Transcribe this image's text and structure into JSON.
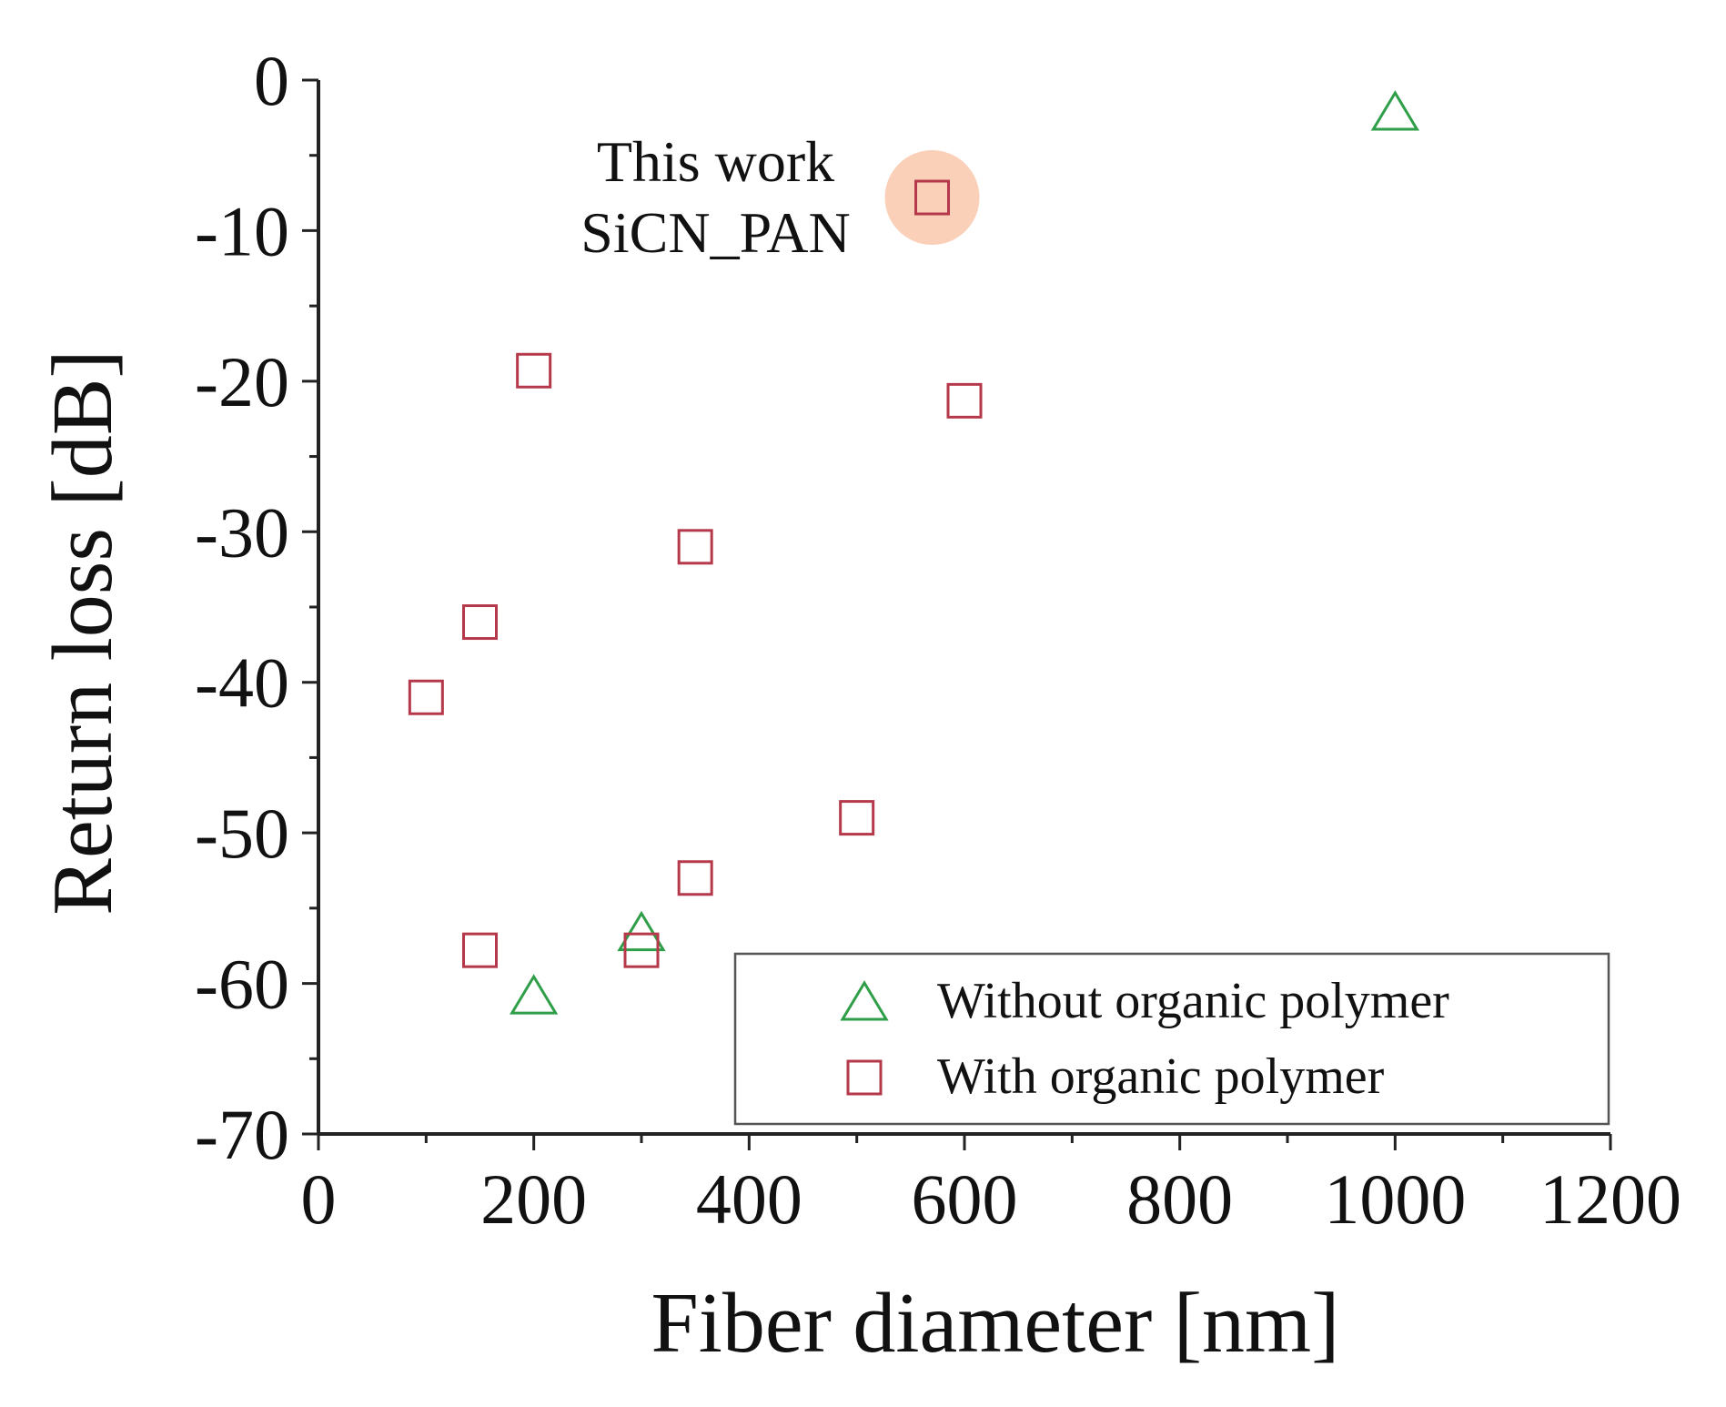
{
  "chart_data": {
    "type": "scatter",
    "title": "",
    "xlabel": "Fiber diameter [nm]",
    "ylabel": "Return loss [dB]",
    "xlim": [
      0,
      1200
    ],
    "ylim": [
      -70,
      0
    ],
    "x_ticks": [
      0,
      200,
      400,
      600,
      800,
      1000,
      1200
    ],
    "y_ticks": [
      0,
      -10,
      -20,
      -30,
      -40,
      -50,
      -60,
      -70
    ],
    "x_tick_labels": [
      "0",
      "200",
      "400",
      "600",
      "800",
      "1000",
      "1200"
    ],
    "y_tick_labels": [
      "0",
      "-10",
      "-20",
      "-30",
      "-40",
      "-50",
      "-60",
      "-70"
    ],
    "grid": false,
    "legend_position": "bottom-right",
    "series": [
      {
        "name": "Without organic polymer",
        "marker": "triangle",
        "color": "#2e9e48",
        "points": [
          {
            "x": 200,
            "y": -61
          },
          {
            "x": 300,
            "y": -56.8
          },
          {
            "x": 1000,
            "y": -2.3
          }
        ]
      },
      {
        "name": "With organic polymer",
        "marker": "square",
        "color": "#b5394a",
        "points": [
          {
            "x": 100,
            "y": -41
          },
          {
            "x": 150,
            "y": -36
          },
          {
            "x": 150,
            "y": -57.8
          },
          {
            "x": 200,
            "y": -19.3
          },
          {
            "x": 300,
            "y": -57.8
          },
          {
            "x": 350,
            "y": -31
          },
          {
            "x": 350,
            "y": -53
          },
          {
            "x": 500,
            "y": -49
          },
          {
            "x": 570,
            "y": -7.8
          },
          {
            "x": 600,
            "y": -21.3
          }
        ]
      }
    ],
    "annotations": [
      {
        "text_lines": [
          "This work",
          "SiCN_PAN"
        ],
        "x": 570,
        "y": -7.8,
        "highlight_color": "#f9c4a8"
      }
    ]
  }
}
